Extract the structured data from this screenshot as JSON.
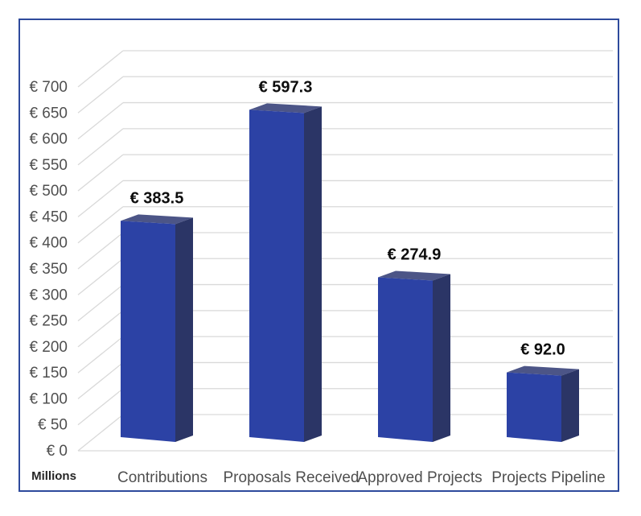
{
  "chart_data": {
    "type": "bar",
    "style_3d": true,
    "categories": [
      "Contributions",
      "Proposals Received",
      "Approved Projects",
      "Projects Pipeline"
    ],
    "values": [
      383.5,
      597.3,
      274.9,
      92.0
    ],
    "value_labels": [
      "€ 383.5",
      "€ 597.3",
      "€ 274.9",
      "€ 92.0"
    ],
    "ylabel": "Millions",
    "xlabel": "",
    "ylim": [
      0,
      700
    ],
    "ytick_step": 50,
    "y_ticks": [
      "€ 0",
      "€ 50",
      "€ 100",
      "€ 150",
      "€ 200",
      "€ 250",
      "€ 300",
      "€ 350",
      "€ 400",
      "€ 450",
      "€ 500",
      "€ 550",
      "€ 600",
      "€ 650",
      "€ 700"
    ],
    "grid": true,
    "legend": "none",
    "colors": {
      "bar_front": "#2c42a5",
      "bar_side": "#2b3566",
      "bar_top": "#4c5587",
      "gridline": "#d9d9d9",
      "axis_text": "#4f4f4f",
      "value_text": "#0d0d0d",
      "frame_border": "#2e4a9c",
      "axis_title_text": "#262626",
      "background": "#ffffff"
    }
  }
}
